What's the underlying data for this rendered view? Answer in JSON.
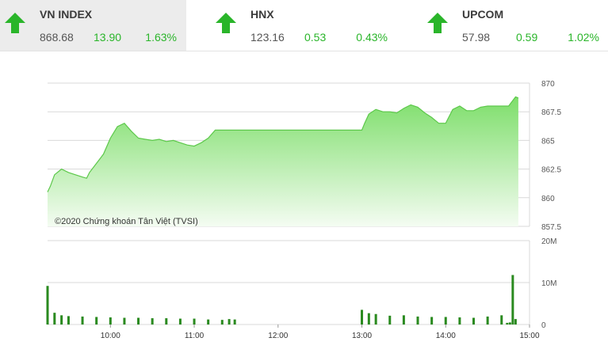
{
  "tickers": [
    {
      "name": "VN INDEX",
      "price": "868.68",
      "change": "13.90",
      "pct": "1.63%",
      "direction": "up",
      "active": true
    },
    {
      "name": "HNX",
      "price": "123.16",
      "change": "0.53",
      "pct": "0.43%",
      "direction": "up",
      "active": false
    },
    {
      "name": "UPCOM",
      "price": "57.98",
      "change": "0.59",
      "pct": "1.02%",
      "direction": "up",
      "active": false
    }
  ],
  "colors": {
    "up": "#2ab52a",
    "area_top": "#7dde6a",
    "area_bottom": "#f4fcf2",
    "volume": "#2a8a1f",
    "grid": "#d9d9d9"
  },
  "chart_data": [
    {
      "type": "area",
      "xlabel": "",
      "ylabel": "",
      "ylim": [
        857.5,
        870
      ],
      "yticks": [
        "870",
        "867.5",
        "865",
        "862.5",
        "860",
        "857.5"
      ],
      "xlim": [
        "09:15",
        "15:00"
      ],
      "grid": true,
      "annotation": "©2020 Chứng khoán Tân Việt (TVSI)",
      "series": [
        {
          "x": [
            "09:15",
            "09:17",
            "09:20",
            "09:25",
            "09:30",
            "09:35",
            "09:40",
            "09:43",
            "09:45",
            "09:50",
            "09:55",
            "10:00",
            "10:05",
            "10:10",
            "10:15",
            "10:20",
            "10:25",
            "10:30",
            "10:35",
            "10:40",
            "10:45",
            "10:50",
            "10:55",
            "11:00",
            "11:05",
            "11:10",
            "11:15",
            "11:20",
            "11:25",
            "11:29",
            "13:00",
            "13:02",
            "13:05",
            "13:10",
            "13:15",
            "13:20",
            "13:25",
            "13:30",
            "13:35",
            "13:40",
            "13:45",
            "13:50",
            "13:55",
            "14:00",
            "14:05",
            "14:10",
            "14:15",
            "14:20",
            "14:25",
            "14:30",
            "14:35",
            "14:40",
            "14:45",
            "14:50",
            "14:52"
          ],
          "y": [
            860.5,
            861.0,
            862.0,
            862.5,
            862.2,
            862.0,
            861.8,
            861.7,
            862.2,
            863.0,
            863.8,
            865.2,
            866.2,
            866.5,
            865.8,
            865.2,
            865.1,
            865.0,
            865.1,
            864.9,
            865.0,
            864.8,
            864.6,
            864.5,
            864.8,
            865.2,
            865.9,
            865.9,
            865.9,
            865.9,
            865.9,
            866.5,
            867.3,
            867.7,
            867.5,
            867.5,
            867.4,
            867.8,
            868.1,
            867.9,
            867.4,
            867.0,
            866.5,
            866.5,
            867.7,
            868.0,
            867.6,
            867.6,
            867.9,
            868.0,
            868.0,
            868.0,
            868.0,
            868.8,
            868.7
          ]
        }
      ]
    },
    {
      "type": "bar",
      "xlabel": "",
      "ylabel": "",
      "ylim": [
        0,
        20
      ],
      "yticks": [
        "20M",
        "10M",
        "0"
      ],
      "xticks": [
        "10:00",
        "11:00",
        "12:00",
        "13:00",
        "14:00",
        "15:00"
      ],
      "grid": true,
      "series": [
        {
          "x": [
            "09:15",
            "09:20",
            "09:25",
            "09:30",
            "09:40",
            "09:50",
            "10:00",
            "10:10",
            "10:20",
            "10:30",
            "10:40",
            "10:50",
            "11:00",
            "11:10",
            "11:20",
            "11:25",
            "11:29",
            "13:00",
            "13:05",
            "13:10",
            "13:20",
            "13:30",
            "13:40",
            "13:50",
            "14:00",
            "14:10",
            "14:20",
            "14:30",
            "14:40",
            "14:44",
            "14:46",
            "14:48",
            "14:50"
          ],
          "values": [
            9.2,
            2.8,
            2.2,
            2.0,
            1.9,
            1.8,
            1.7,
            1.6,
            1.6,
            1.5,
            1.5,
            1.4,
            1.4,
            1.2,
            1.1,
            1.3,
            1.2,
            3.5,
            2.7,
            2.5,
            2.1,
            2.2,
            1.9,
            1.8,
            1.8,
            1.7,
            1.6,
            1.9,
            2.2,
            0.4,
            0.5,
            11.8,
            1.3
          ]
        }
      ]
    }
  ]
}
